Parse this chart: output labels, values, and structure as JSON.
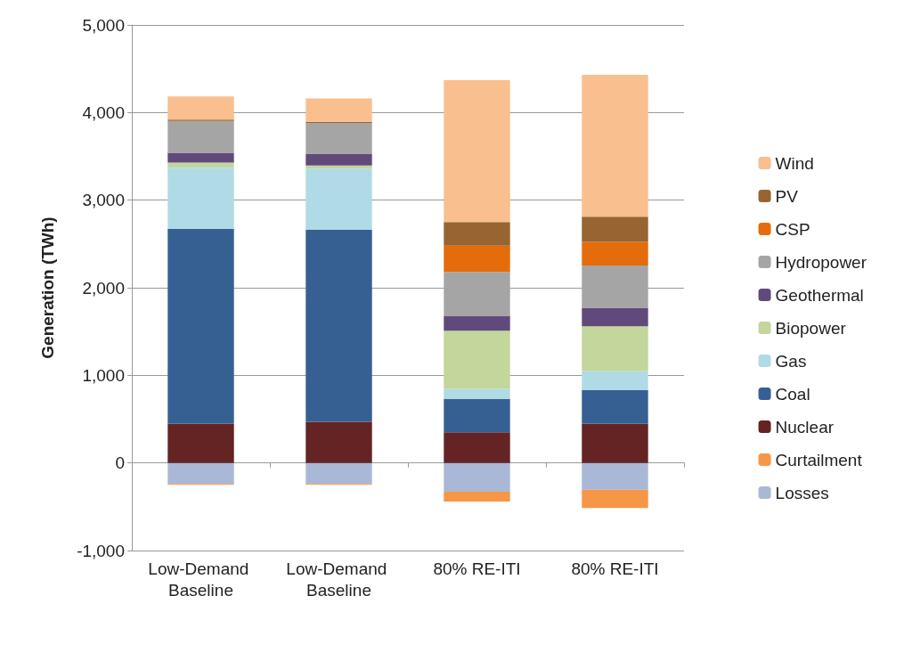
{
  "chart_data": {
    "type": "bar",
    "stacked": true,
    "ylabel": "Generation (TWh)",
    "categories": [
      "Low-Demand Baseline",
      "Low-Demand Baseline",
      "80% RE-ITI",
      "80% RE-ITI"
    ],
    "series": [
      {
        "name": "Losses",
        "color": "#a9b8d6",
        "values": [
          -240,
          -240,
          -330,
          -305
        ]
      },
      {
        "name": "Curtailment",
        "color": "#f79646",
        "values": [
          -10,
          -10,
          -110,
          -210
        ]
      },
      {
        "name": "Nuclear",
        "color": "#632423",
        "values": [
          450,
          470,
          350,
          450
        ]
      },
      {
        "name": "Coal",
        "color": "#366092",
        "values": [
          2220,
          2190,
          380,
          380
        ]
      },
      {
        "name": "Gas",
        "color": "#b0dae6",
        "values": [
          700,
          700,
          115,
          220
        ]
      },
      {
        "name": "Biopower",
        "color": "#c3d69b",
        "values": [
          60,
          35,
          665,
          510
        ]
      },
      {
        "name": "Geothermal",
        "color": "#604a7b",
        "values": [
          110,
          135,
          170,
          210
        ]
      },
      {
        "name": "Hydropower",
        "color": "#a5a5a5",
        "values": [
          365,
          350,
          500,
          485
        ]
      },
      {
        "name": "CSP",
        "color": "#e46c0a",
        "values": [
          0,
          0,
          300,
          270
        ]
      },
      {
        "name": "PV",
        "color": "#976432",
        "values": [
          15,
          15,
          270,
          285
        ]
      },
      {
        "name": "Wind",
        "color": "#f9bf8f",
        "values": [
          265,
          265,
          1620,
          1620
        ]
      }
    ],
    "ylim": [
      -1000,
      5000
    ],
    "yticks": [
      {
        "value": -1000,
        "label": "-1,000"
      },
      0,
      {
        "value": 1000,
        "label": "1,000"
      },
      {
        "value": 2000,
        "label": "2,000"
      },
      {
        "value": 3000,
        "label": "3,000"
      },
      {
        "value": 4000,
        "label": "4,000"
      },
      {
        "value": 5000,
        "label": "5,000"
      }
    ],
    "grid": "y",
    "legend": "right"
  }
}
